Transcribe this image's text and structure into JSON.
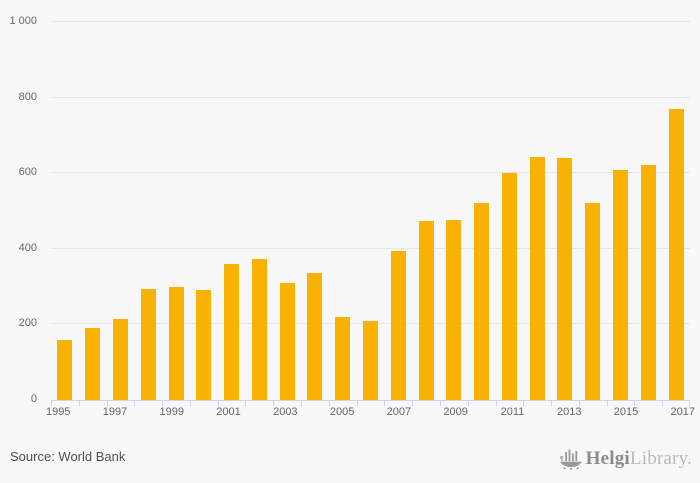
{
  "chart_data": {
    "type": "bar",
    "categories": [
      1995,
      1996,
      1997,
      1998,
      1999,
      2000,
      2001,
      2002,
      2003,
      2004,
      2005,
      2006,
      2007,
      2008,
      2009,
      2010,
      2011,
      2012,
      2013,
      2014,
      2015,
      2016,
      2017
    ],
    "values": [
      160,
      190,
      215,
      295,
      300,
      290,
      360,
      372,
      310,
      335,
      220,
      210,
      393,
      473,
      477,
      520,
      601,
      644,
      640,
      520,
      609,
      622,
      770
    ],
    "title": "",
    "xlabel": "",
    "ylabel": "",
    "ylim": [
      0,
      1000
    ],
    "yticks": [
      0,
      200,
      400,
      600,
      800,
      1000
    ],
    "ytick_labels": [
      "0",
      "200",
      "400",
      "600",
      "800",
      "1 000"
    ],
    "xtick_labels_shown": [
      "1995",
      "1997",
      "1999",
      "2001",
      "2003",
      "2005",
      "2007",
      "2009",
      "2011",
      "2013",
      "2015",
      "2017"
    ],
    "grid": true,
    "legend": "none",
    "bar_color": "#f9b104",
    "gridline_color": "#e6e6e6",
    "axis_color": "#ccd6eb",
    "label_color": "#666666",
    "background_color": "#f8f8f8"
  },
  "footer": {
    "source": "Source: World Bank",
    "logo_helgi": "Helgi",
    "logo_library": "Library."
  }
}
